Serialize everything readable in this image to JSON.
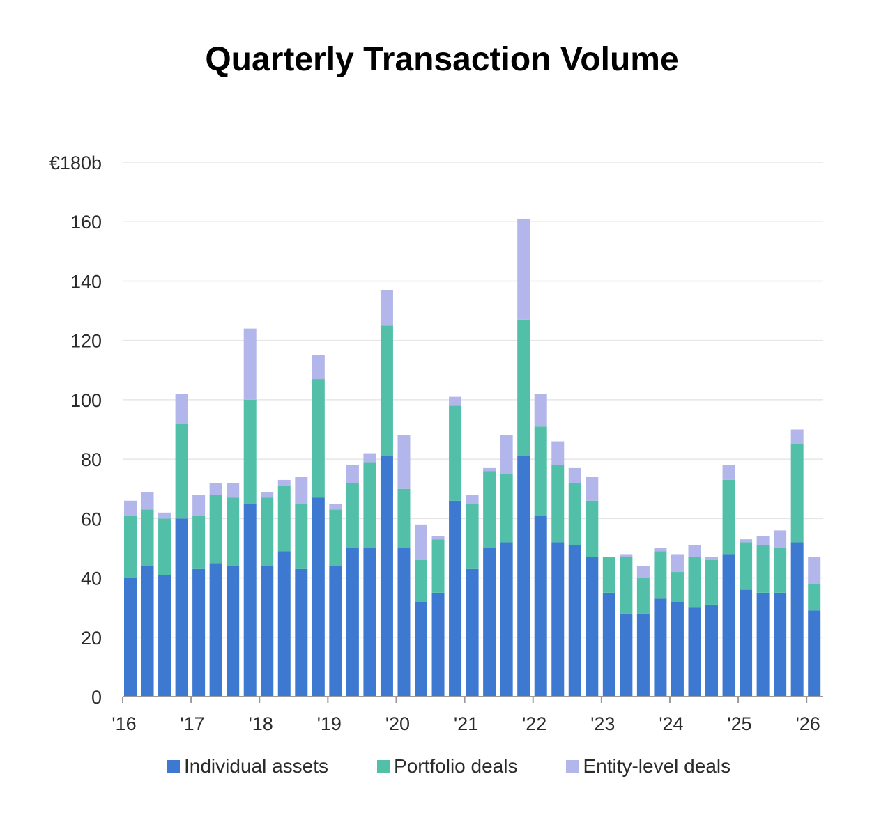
{
  "chart_data": {
    "type": "bar",
    "stacked": true,
    "title": "Quarterly Transaction Volume",
    "xlabel": "",
    "ylabel": "",
    "ylim": [
      0,
      180
    ],
    "y_ticks": [
      "0",
      "20",
      "40",
      "60",
      "80",
      "100",
      "120",
      "140",
      "160",
      "€180b"
    ],
    "x_tick_labels": [
      "'16",
      "'17",
      "'18",
      "'19",
      "'20",
      "'21",
      "'22",
      "'23",
      "'24",
      "'25",
      "'26"
    ],
    "grid": true,
    "legend_position": "bottom",
    "colors": {
      "individual": "#3d78d1",
      "portfolio": "#52c0a8",
      "entity": "#b3b6ea",
      "grid": "#e6e6e6",
      "axis": "#9a9a9a"
    },
    "series": [
      {
        "name": "Individual assets",
        "values": [
          40,
          44,
          41,
          60,
          43,
          45,
          44,
          65,
          44,
          49,
          43,
          67,
          44,
          50,
          50,
          81,
          50,
          32,
          35,
          66,
          43,
          50,
          52,
          81,
          61,
          52,
          51,
          47,
          35,
          28,
          28,
          33,
          32,
          30,
          31,
          48,
          36,
          35,
          35,
          52,
          29
        ]
      },
      {
        "name": "Portfolio deals",
        "values": [
          21,
          19,
          19,
          32,
          18,
          23,
          23,
          35,
          23,
          22,
          22,
          40,
          19,
          22,
          29,
          44,
          20,
          14,
          18,
          32,
          22,
          26,
          23,
          46,
          30,
          26,
          21,
          19,
          12,
          19,
          12,
          16,
          10,
          17,
          15,
          25,
          16,
          16,
          15,
          33,
          9
        ]
      },
      {
        "name": "Entity-level deals",
        "values": [
          5,
          6,
          2,
          10,
          7,
          4,
          5,
          24,
          2,
          2,
          9,
          8,
          2,
          6,
          3,
          12,
          18,
          12,
          1,
          3,
          3,
          1,
          13,
          34,
          11,
          8,
          5,
          8,
          0,
          1,
          4,
          1,
          6,
          4,
          1,
          5,
          1,
          3,
          6,
          5,
          9
        ]
      }
    ]
  }
}
